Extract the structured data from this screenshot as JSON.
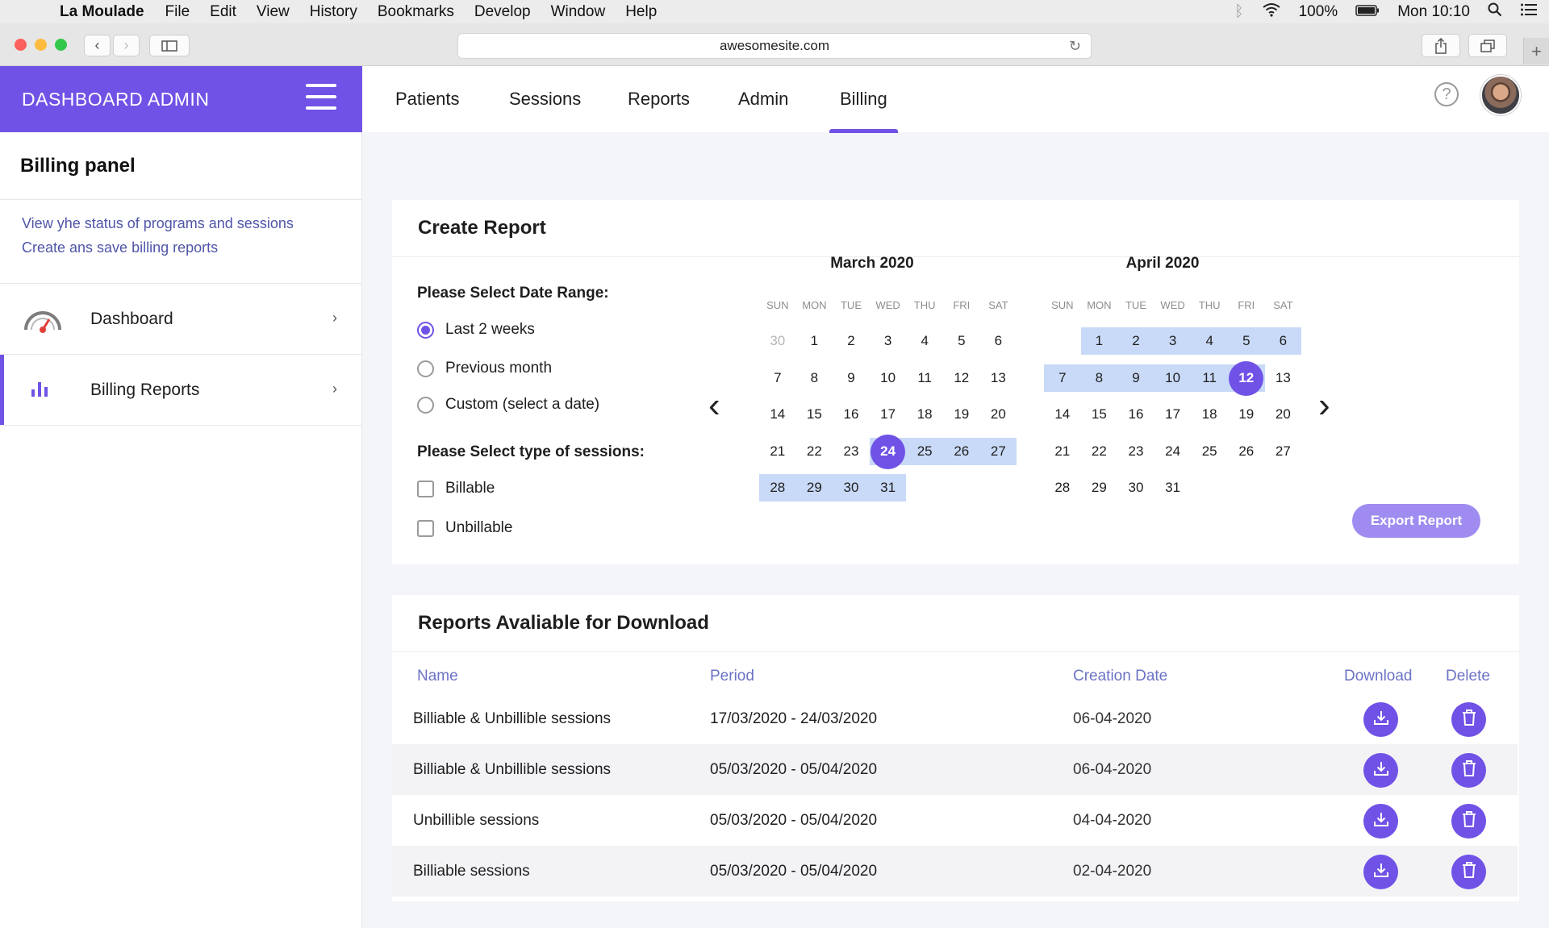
{
  "menubar": {
    "app_name": "La Moulade",
    "items": [
      "File",
      "Edit",
      "View",
      "History",
      "Bookmarks",
      "Develop",
      "Window",
      "Help"
    ],
    "battery": "100%",
    "clock": "Mon 10:10"
  },
  "browser": {
    "url": "awesomesite.com"
  },
  "header": {
    "brand": "DASHBOARD ADMIN",
    "tabs": [
      "Patients",
      "Sessions",
      "Reports",
      "Admin",
      "Billing"
    ],
    "active_tab": "Billing",
    "help_glyph": "?"
  },
  "sidebar": {
    "title": "Billing panel",
    "description": [
      "View yhe status of programs and sessions",
      "Create ans save billing reports"
    ],
    "items": [
      {
        "label": "Dashboard",
        "icon": "gauge-icon"
      },
      {
        "label": "Billing Reports",
        "icon": "bar-chart-icon",
        "active": true
      }
    ]
  },
  "create_report": {
    "title": "Create Report",
    "date_range_label": "Please Select Date Range:",
    "date_options": [
      {
        "label": "Last 2 weeks",
        "selected": true
      },
      {
        "label": "Previous month",
        "selected": false
      },
      {
        "label": "Custom (select a date)",
        "selected": false
      }
    ],
    "session_type_label": "Please Select type of sessions:",
    "session_options": [
      {
        "label": "Billable",
        "checked": false
      },
      {
        "label": "Unbillable",
        "checked": false
      }
    ],
    "export_label": "Export Report",
    "weekdays": [
      "SUN",
      "MON",
      "TUE",
      "WED",
      "THU",
      "FRI",
      "SAT"
    ],
    "months": [
      {
        "title": "March 2020",
        "weeks": [
          [
            "30",
            "1",
            "2",
            "3",
            "4",
            "5",
            "6"
          ],
          [
            "7",
            "8",
            "9",
            "10",
            "11",
            "12",
            "13"
          ],
          [
            "14",
            "15",
            "16",
            "17",
            "18",
            "19",
            "20"
          ],
          [
            "21",
            "22",
            "23",
            "24",
            "25",
            "26",
            "27"
          ],
          [
            "28",
            "29",
            "30",
            "31",
            "",
            "",
            ""
          ]
        ],
        "muted": [
          "0-0"
        ],
        "range": [
          "3-3",
          "3-4",
          "3-5",
          "3-6",
          "4-0",
          "4-1",
          "4-2",
          "4-3"
        ],
        "selected": [
          "3-3"
        ]
      },
      {
        "title": "April 2020",
        "weeks": [
          [
            "",
            "1",
            "2",
            "3",
            "4",
            "5",
            "6"
          ],
          [
            "7",
            "8",
            "9",
            "10",
            "11",
            "12",
            "13"
          ],
          [
            "14",
            "15",
            "16",
            "17",
            "18",
            "19",
            "20"
          ],
          [
            "21",
            "22",
            "23",
            "24",
            "25",
            "26",
            "27"
          ],
          [
            "28",
            "29",
            "30",
            "31",
            "",
            "",
            ""
          ]
        ],
        "muted": [],
        "range": [
          "0-1",
          "0-2",
          "0-3",
          "0-4",
          "0-5",
          "0-6",
          "1-0",
          "1-1",
          "1-2",
          "1-3",
          "1-4",
          "1-5"
        ],
        "selected": [
          "1-5"
        ]
      }
    ]
  },
  "reports": {
    "title": "Reports Avaliable for Download",
    "columns": {
      "name": "Name",
      "period": "Period",
      "created": "Creation Date",
      "download": "Download",
      "delete": "Delete"
    },
    "rows": [
      {
        "name": "Billiable & Unbillible sessions",
        "period": "17/03/2020 - 24/03/2020",
        "created": "06-04-2020"
      },
      {
        "name": "Billiable & Unbillible sessions",
        "period": "05/03/2020 - 05/04/2020",
        "created": "06-04-2020"
      },
      {
        "name": "Unbillible sessions",
        "period": "05/03/2020 - 05/04/2020",
        "created": "04-04-2020"
      },
      {
        "name": "Billiable sessions",
        "period": "05/03/2020 - 05/04/2020",
        "created": "02-04-2020"
      }
    ]
  },
  "colors": {
    "accent": "#7052e6",
    "range": "#c9daf8",
    "link": "#6b73c4"
  }
}
